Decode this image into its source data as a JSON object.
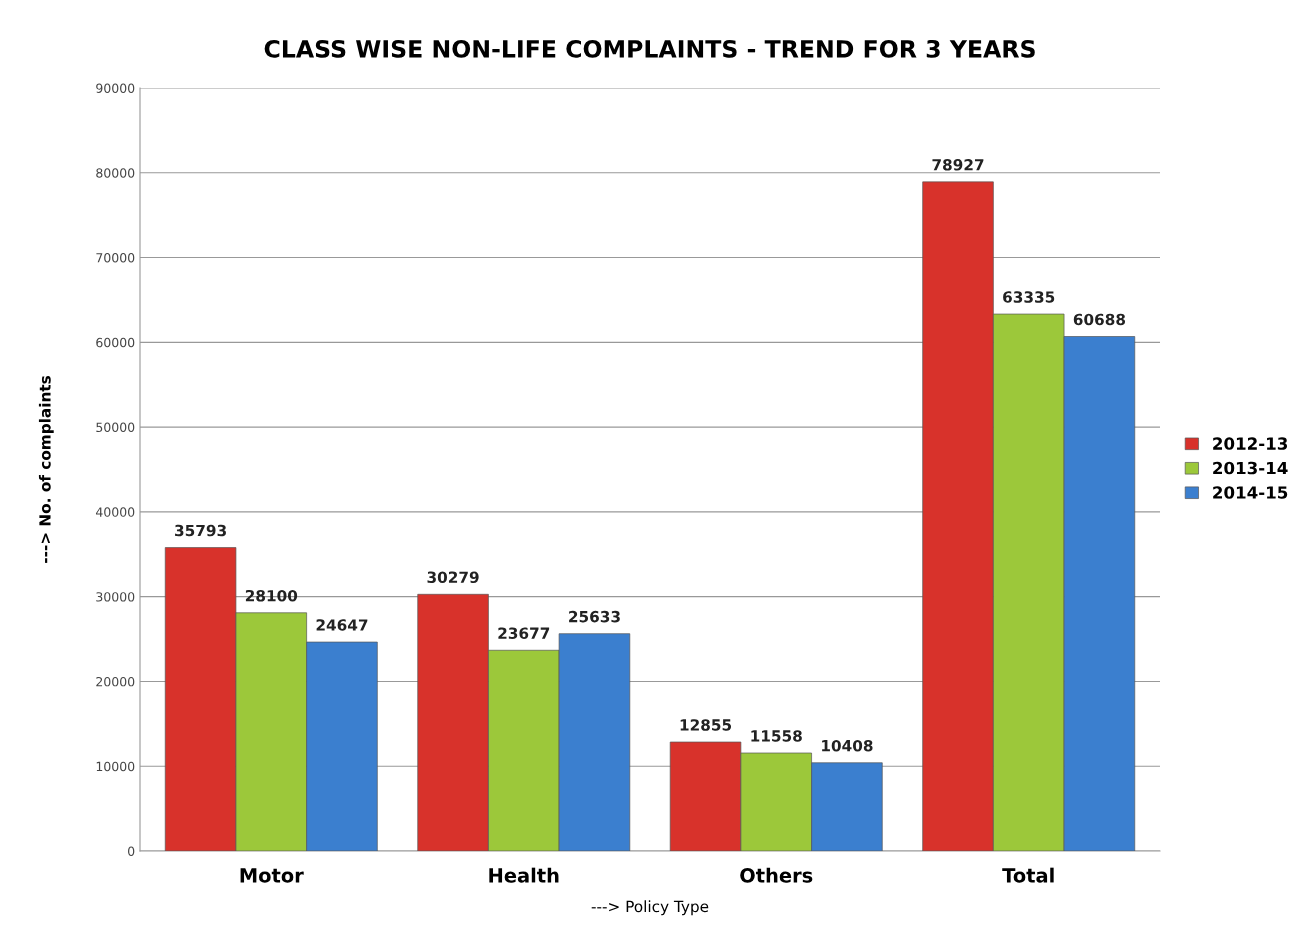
{
  "chart_data": {
    "type": "bar",
    "title": "CLASS WISE NON-LIFE COMPLAINTS - TREND FOR 3 YEARS",
    "xlabel": "---> Policy Type",
    "ylabel": "---> No. of complaints",
    "categories": [
      "Motor",
      "Health",
      "Others",
      "Total"
    ],
    "series": [
      {
        "name": "2012-13",
        "color": "#d8322b",
        "values": [
          35793,
          30279,
          12855,
          78927
        ]
      },
      {
        "name": "2013-14",
        "color": "#9cc83a",
        "values": [
          28100,
          23677,
          11558,
          63335
        ]
      },
      {
        "name": "2014-15",
        "color": "#3b7fcf",
        "values": [
          24647,
          25633,
          10408,
          60688
        ]
      }
    ],
    "ylim": [
      0,
      90000
    ],
    "yticks": [
      0,
      10000,
      20000,
      30000,
      40000,
      50000,
      60000,
      70000,
      80000,
      90000
    ],
    "grid": "y",
    "legend": "right",
    "data_labels": true
  }
}
